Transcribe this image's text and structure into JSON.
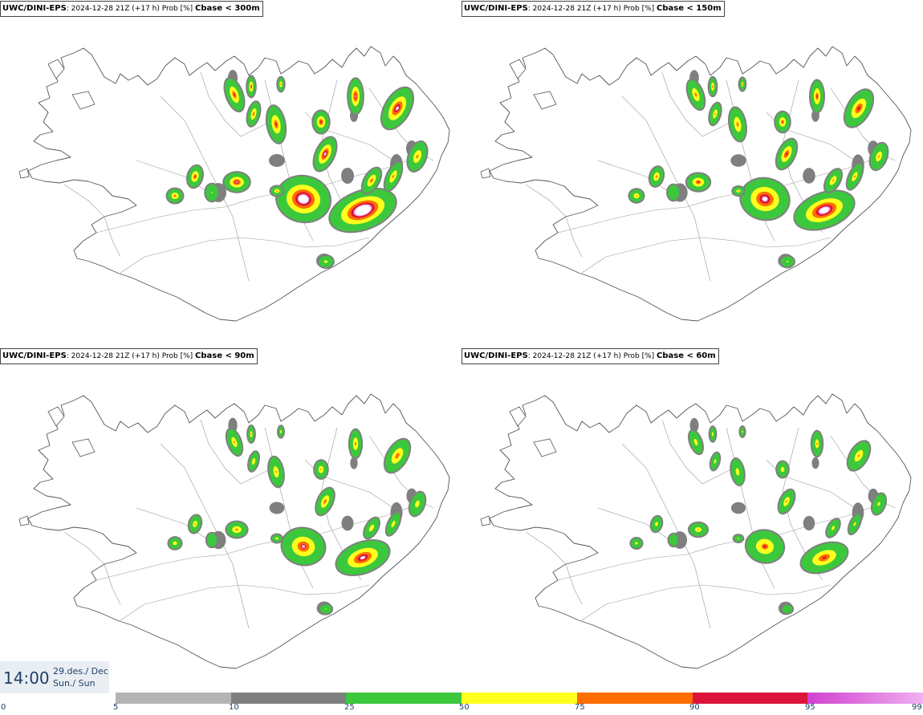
{
  "panels": [
    {
      "model": "UWC/DINI-EPS",
      "info": ": 2024-12-28 21Z (+17 h) Prob [%] ",
      "criterion": "Cbase < 300m",
      "scale": 1.0
    },
    {
      "model": "UWC/DINI-EPS",
      "info": ": 2024-12-28 21Z (+17 h) Prob [%] ",
      "criterion": "Cbase < 150m",
      "scale": 0.9
    },
    {
      "model": "UWC/DINI-EPS",
      "info": ": 2024-12-28 21Z (+17 h) Prob [%] ",
      "criterion": "Cbase < 90m",
      "scale": 0.8
    },
    {
      "model": "UWC/DINI-EPS",
      "info": ": 2024-12-28 21Z (+17 h) Prob [%] ",
      "criterion": "Cbase < 60m",
      "scale": 0.7
    }
  ],
  "time": {
    "hour": "14:00",
    "date": "29.des./ Dec",
    "day": "Sun./ Sun"
  },
  "colorbar": {
    "ticks": [
      "0",
      "5",
      "10",
      "25",
      "50",
      "75",
      "90",
      "95",
      "99"
    ],
    "bins": [
      {
        "from": 5,
        "to": 10,
        "color": "#b4b4b4"
      },
      {
        "from": 10,
        "to": 25,
        "color": "#7f7f7f"
      },
      {
        "from": 25,
        "to": 50,
        "color": "#3cc83c"
      },
      {
        "from": 50,
        "to": 75,
        "color": "#ffff1e"
      },
      {
        "from": 75,
        "to": 90,
        "color": "#ff6e00"
      },
      {
        "from": 90,
        "to": 95,
        "color": "#dc143c"
      },
      {
        "from": 95,
        "to": 99,
        "color": "#d040d0"
      }
    ],
    "top_color": "#f0b0f0"
  }
}
